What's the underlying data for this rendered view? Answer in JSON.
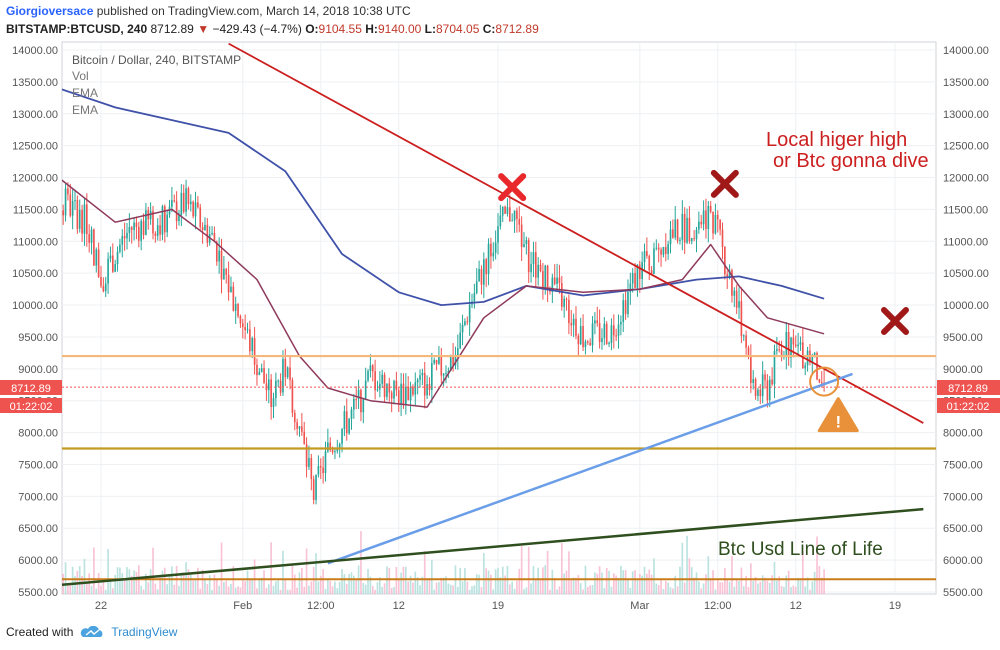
{
  "header": {
    "author": "Giorgioversace",
    "published": "published on TradingView.com, March 14, 2018 10:38 UTC",
    "symbol": "BITSTAMP:BTCUSD, 240",
    "last": "8712.89",
    "change": "−429.43 (−4.7%)",
    "open_label": "O:",
    "open": "9104.55",
    "high_label": "H:",
    "high": "9140.00",
    "low_label": "L:",
    "low": "8704.05",
    "close_label": "C:",
    "close": "8712.89"
  },
  "legend": {
    "title": "Bitcoin / Dollar, 240, BITSTAMP",
    "vol": "Vol",
    "ema1": "EMA",
    "ema2": "EMA"
  },
  "price_tag": {
    "price": "8712.89",
    "timer": "01:22:02",
    "color": "#ef5350"
  },
  "annotations": {
    "line1": "Local higer high",
    "line2": "or Btc gonna dive",
    "life": "Btc Usd Line of Life",
    "warning": "!"
  },
  "footer": {
    "created": "Created with",
    "brand": "TradingView"
  },
  "colors": {
    "up": "#26a69a",
    "down": "#ef5350",
    "ema_fast": "#8e3a5c",
    "ema_slow": "#3f51a8",
    "downtrend": "#cc1f1f",
    "uptrend": "#6b9ee8",
    "support_orange": "#f5b87a",
    "support_gold": "#c49a22",
    "life_line": "#2f4f1f",
    "base_line": "#c87d1a",
    "cross_red": "#e8282a",
    "cross_dark": "#a01818",
    "warning": "#e8913a"
  },
  "chart_data": {
    "type": "candlestick",
    "ylim": [
      5500,
      14000
    ],
    "y_ticks": [
      "5500.00",
      "6000.00",
      "6500.00",
      "7000.00",
      "7500.00",
      "8000.00",
      "8500.00",
      "9000.00",
      "9500.00",
      "10000.00",
      "10500.00",
      "11000.00",
      "11500.00",
      "12000.00",
      "12500.00",
      "13000.00",
      "13500.00",
      "14000.00"
    ],
    "x_ticks": [
      "22",
      "Feb",
      "12:00",
      "12",
      "19",
      "Mar",
      "12:00",
      "12",
      "19"
    ],
    "x_tick_dates": [
      "2018-01-22",
      "2018-02-01",
      "2018-02-06 12:00",
      "2018-02-12",
      "2018-02-19",
      "2018-03-01",
      "2018-03-06 12:00",
      "2018-03-12",
      "2018-03-19"
    ],
    "close_anchors": [
      [
        "2018-01-17",
        11600
      ],
      [
        "2018-01-18",
        12300
      ],
      [
        "2018-01-19",
        11700
      ],
      [
        "2018-01-21",
        11300
      ],
      [
        "2018-01-22",
        10400
      ],
      [
        "2018-01-24",
        11200
      ],
      [
        "2018-01-26",
        11300
      ],
      [
        "2018-01-28",
        11600
      ],
      [
        "2018-01-30",
        11000
      ],
      [
        "2018-01-31",
        10300
      ],
      [
        "2018-02-02",
        9100
      ],
      [
        "2018-02-03",
        8500
      ],
      [
        "2018-02-04",
        9000
      ],
      [
        "2018-02-05",
        8100
      ],
      [
        "2018-02-06",
        7000
      ],
      [
        "2018-02-07",
        7700
      ],
      [
        "2018-02-09",
        8400
      ],
      [
        "2018-02-10",
        8900
      ],
      [
        "2018-02-12",
        8600
      ],
      [
        "2018-02-14",
        8800
      ],
      [
        "2018-02-16",
        9200
      ],
      [
        "2018-02-17",
        10000
      ],
      [
        "2018-02-19",
        11200
      ],
      [
        "2018-02-20",
        11500
      ],
      [
        "2018-02-21",
        10800
      ],
      [
        "2018-02-23",
        10300
      ],
      [
        "2018-02-25",
        9500
      ],
      [
        "2018-02-27",
        9600
      ],
      [
        "2018-03-01",
        10600
      ],
      [
        "2018-03-02",
        10700
      ],
      [
        "2018-03-03",
        11100
      ],
      [
        "2018-03-05",
        11300
      ],
      [
        "2018-03-06",
        11500
      ],
      [
        "2018-03-07",
        10700
      ],
      [
        "2018-03-08",
        9900
      ],
      [
        "2018-03-09",
        8600
      ],
      [
        "2018-03-10",
        8700
      ],
      [
        "2018-03-11",
        9400
      ],
      [
        "2018-03-12",
        9300
      ],
      [
        "2018-03-13",
        9200
      ],
      [
        "2018-03-14",
        8712.89
      ]
    ],
    "ema_fast": [
      [
        "2018-01-16",
        12650
      ],
      [
        "2018-01-19",
        12000
      ],
      [
        "2018-01-23",
        11300
      ],
      [
        "2018-01-27",
        11500
      ],
      [
        "2018-01-30",
        11000
      ],
      [
        "2018-02-02",
        10400
      ],
      [
        "2018-02-05",
        9200
      ],
      [
        "2018-02-07",
        8700
      ],
      [
        "2018-02-10",
        8500
      ],
      [
        "2018-02-14",
        8400
      ],
      [
        "2018-02-18",
        9800
      ],
      [
        "2018-02-21",
        10300
      ],
      [
        "2018-02-25",
        10200
      ],
      [
        "2018-03-01",
        10250
      ],
      [
        "2018-03-04",
        10400
      ],
      [
        "2018-03-06",
        10950
      ],
      [
        "2018-03-08",
        10300
      ],
      [
        "2018-03-10",
        9800
      ],
      [
        "2018-03-14",
        9550
      ]
    ],
    "ema_slow": [
      [
        "2018-01-16",
        13750
      ],
      [
        "2018-01-19",
        13400
      ],
      [
        "2018-01-23",
        13100
      ],
      [
        "2018-01-27",
        12900
      ],
      [
        "2018-01-31",
        12700
      ],
      [
        "2018-02-04",
        12100
      ],
      [
        "2018-02-08",
        10800
      ],
      [
        "2018-02-12",
        10200
      ],
      [
        "2018-02-15",
        10000
      ],
      [
        "2018-02-18",
        10050
      ],
      [
        "2018-02-21",
        10300
      ],
      [
        "2018-02-25",
        10150
      ],
      [
        "2018-03-01",
        10250
      ],
      [
        "2018-03-05",
        10400
      ],
      [
        "2018-03-08",
        10450
      ],
      [
        "2018-03-11",
        10300
      ],
      [
        "2018-03-14",
        10100
      ]
    ],
    "horizontal_levels": {
      "orange": 9200,
      "gold": 7750,
      "base": 5700
    },
    "trendlines": {
      "downtrend": [
        [
          "2018-01-31",
          14100
        ],
        [
          "2018-03-21",
          8150
        ]
      ],
      "uptrend": [
        [
          "2018-02-07",
          5950
        ],
        [
          "2018-03-16",
          8920
        ]
      ],
      "line_of_life": [
        [
          "2018-01-16",
          5550
        ],
        [
          "2018-03-21",
          6800
        ]
      ]
    },
    "markers": [
      {
        "kind": "red-x",
        "date": "2018-02-20",
        "price": 11850
      },
      {
        "kind": "dark-x",
        "date": "2018-03-07",
        "price": 11900
      },
      {
        "kind": "dark-x",
        "date": "2018-03-19",
        "price": 9750
      },
      {
        "kind": "circle",
        "date": "2018-03-14",
        "price": 8800
      },
      {
        "kind": "warning",
        "date": "2018-03-15",
        "price": 8250
      }
    ]
  }
}
